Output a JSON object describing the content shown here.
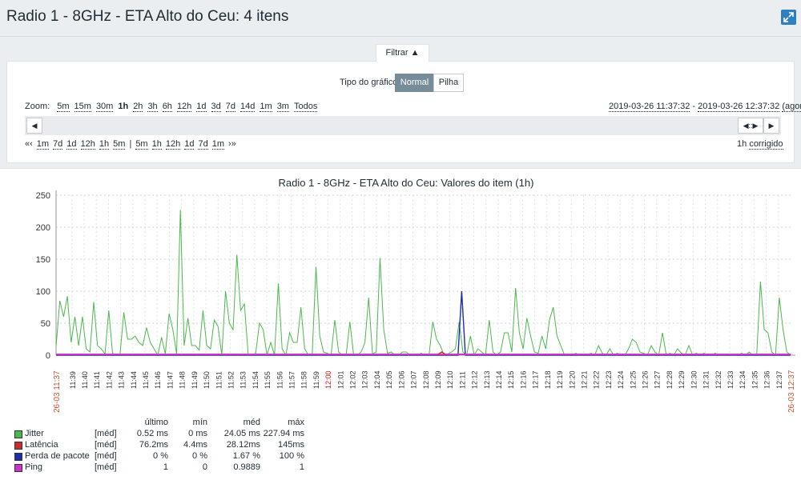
{
  "header": {
    "title": "Radio 1 - 8GHz - ETA Alto do Ceu: 4 itens"
  },
  "filter": {
    "tab_label": "Filtrar ▲",
    "graph_type_label": "Tipo do gráfico",
    "graph_type_options": [
      "Normal",
      "Pilha"
    ],
    "graph_type_selected": "Normal"
  },
  "zoom": {
    "label": "Zoom:",
    "options": [
      "5m",
      "15m",
      "30m",
      "1h",
      "2h",
      "3h",
      "6h",
      "12h",
      "1d",
      "3d",
      "7d",
      "14d",
      "1m",
      "3m",
      "Todos"
    ],
    "selected": "1h"
  },
  "time_range": {
    "from": "2019-03-26 11:37:32",
    "sep": " - ",
    "to": "2019-03-26 12:37:32",
    "suffix": "(agora)"
  },
  "nav": {
    "back_arrows": "«‹",
    "back": [
      "1m",
      "7d",
      "1d",
      "12h",
      "1h",
      "5m"
    ],
    "divider": "|",
    "forward": [
      "5m",
      "1h",
      "12h",
      "1d",
      "7d",
      "1m"
    ],
    "forward_arrows": "›»",
    "period": "1h",
    "fixed_label": "corrigido"
  },
  "chart_data": {
    "type": "line",
    "title": "Radio 1 - 8GHz - ETA Alto do Ceu: Valores do item (1h)",
    "ylim": [
      0,
      250
    ],
    "yticks": [
      0,
      50,
      100,
      150,
      200,
      250
    ],
    "start_label": "26-03 11:37",
    "end_label": "26-03 12:37",
    "x_ticks": [
      "11:39",
      "11:40",
      "11:41",
      "11:42",
      "11:43",
      "11:44",
      "11:45",
      "11:46",
      "11:47",
      "11:48",
      "11:49",
      "11:50",
      "11:51",
      "11:52",
      "11:53",
      "11:54",
      "11:55",
      "11:56",
      "11:57",
      "11:58",
      "11:59",
      "12:00",
      "12:01",
      "12:02",
      "12:03",
      "12:04",
      "12:05",
      "12:06",
      "12:07",
      "12:08",
      "12:09",
      "12:10",
      "12:11",
      "12:12",
      "12:13",
      "12:14",
      "12:15",
      "12:16",
      "12:17",
      "12:18",
      "12:19",
      "12:20",
      "12:21",
      "12:22",
      "12:23",
      "12:24",
      "12:25",
      "12:26",
      "12:27",
      "12:28",
      "12:29",
      "12:30",
      "12:31",
      "12:32",
      "12:33",
      "12:34",
      "12:35",
      "12:36",
      "12:37"
    ],
    "grid": true,
    "series": [
      {
        "name": "Jitter",
        "color": "#4cb84c",
        "values": [
          14,
          85,
          60,
          92,
          20,
          60,
          15,
          60,
          10,
          5,
          83,
          15,
          10,
          2,
          70,
          3,
          0,
          2,
          67,
          25,
          25,
          30,
          20,
          15,
          43,
          20,
          10,
          0,
          28,
          2,
          65,
          40,
          2,
          227,
          15,
          58,
          15,
          15,
          8,
          70,
          15,
          10,
          55,
          45,
          0,
          100,
          50,
          40,
          157,
          70,
          80,
          2,
          0,
          3,
          50,
          40,
          0,
          20,
          0,
          112,
          10,
          0,
          35,
          20,
          20,
          75,
          10,
          0,
          2,
          138,
          30,
          5,
          3,
          0,
          55,
          5,
          0,
          0,
          52,
          0,
          0,
          5,
          20,
          90,
          2,
          5,
          152,
          40,
          3,
          5,
          0,
          0,
          5,
          5,
          0,
          0,
          0,
          3,
          0,
          0,
          52,
          25,
          15,
          0,
          2,
          5,
          10,
          52,
          5,
          0,
          30,
          0,
          10,
          5,
          0,
          55,
          5,
          0,
          5,
          35,
          35,
          5,
          105,
          35,
          10,
          58,
          30,
          5,
          3,
          30,
          10,
          55,
          75,
          30,
          15,
          0,
          0,
          0,
          3,
          0,
          0,
          0,
          3,
          0,
          15,
          3,
          0,
          10,
          0,
          3,
          0,
          0,
          10,
          25,
          20,
          5,
          3,
          0,
          15,
          5,
          0,
          35,
          0,
          3,
          0,
          10,
          3,
          0,
          15,
          0,
          3,
          0,
          3,
          0,
          0,
          3,
          0,
          0,
          0,
          0,
          0,
          0,
          3,
          0,
          5,
          0,
          0,
          115,
          40,
          35,
          5,
          0,
          90,
          40,
          5,
          0
        ]
      },
      {
        "name": "Latência",
        "color": "#cc2b2b",
        "values": []
      },
      {
        "name": "Perda de pacote",
        "color": "#1f2ea8",
        "values": [
          0,
          0,
          0,
          0,
          0,
          0,
          0,
          0,
          0,
          0,
          0,
          0,
          0,
          0,
          0,
          0,
          0,
          0,
          0,
          0,
          0,
          0,
          0,
          0,
          0,
          0,
          0,
          0,
          0,
          0,
          0,
          0,
          0,
          0,
          0,
          0,
          0,
          0,
          0,
          0,
          0,
          0,
          0,
          0,
          0,
          0,
          0,
          0,
          0,
          0,
          0,
          0,
          0,
          0,
          0,
          0,
          0,
          0,
          0,
          0,
          0,
          0,
          0,
          0,
          0,
          0,
          0,
          0,
          0,
          0,
          0,
          0,
          0,
          0,
          0,
          0,
          0,
          0,
          0,
          0,
          0,
          0,
          0,
          0,
          0,
          0,
          0,
          0,
          0,
          0,
          0,
          0,
          0,
          0,
          0,
          0,
          0,
          0,
          0,
          0,
          0,
          0,
          0,
          0,
          0,
          0,
          0,
          0,
          0,
          0,
          0,
          100,
          0,
          0,
          0,
          0,
          0,
          0,
          0,
          0,
          0,
          0,
          0,
          0,
          0,
          0,
          0,
          0,
          0,
          0,
          0,
          0,
          0,
          0,
          0,
          0,
          0,
          0,
          0,
          0,
          0,
          0,
          0,
          0,
          0,
          0,
          0,
          0,
          0,
          0,
          0,
          0,
          0,
          0,
          0,
          0,
          0,
          0,
          0,
          0,
          0,
          0,
          0,
          0,
          0,
          0,
          0,
          0,
          0,
          0,
          0,
          0,
          0,
          0,
          0,
          0,
          0,
          0,
          0,
          0,
          0,
          0,
          0,
          0,
          0,
          0,
          0,
          0,
          0,
          0,
          0,
          0,
          0,
          0,
          0,
          0,
          0,
          0,
          0,
          0,
          0,
          0
        ]
      },
      {
        "name": "Ping",
        "color": "#cc33cc",
        "values": []
      }
    ]
  },
  "legend": {
    "headers": [
      "último",
      "mín",
      "méd",
      "máx"
    ],
    "rows": [
      {
        "name": "Jitter",
        "func": "[méd]",
        "last": "0.52 ms",
        "min": "0 ms",
        "avg": "24.05 ms",
        "max": "227.94 ms",
        "color": "#4cb84c"
      },
      {
        "name": "Latência",
        "func": "[méd]",
        "last": "76.2ms",
        "min": "4.4ms",
        "avg": "28.12ms",
        "max": "145ms",
        "color": "#cc2b2b"
      },
      {
        "name": "Perda de pacote",
        "func": "[méd]",
        "last": "0 %",
        "min": "0 %",
        "avg": "1.67 %",
        "max": "100 %",
        "color": "#1f2ea8"
      },
      {
        "name": "Ping",
        "func": "[méd]",
        "last": "1",
        "min": "0",
        "avg": "0.9889",
        "max": "1",
        "color": "#cc33cc"
      }
    ]
  }
}
